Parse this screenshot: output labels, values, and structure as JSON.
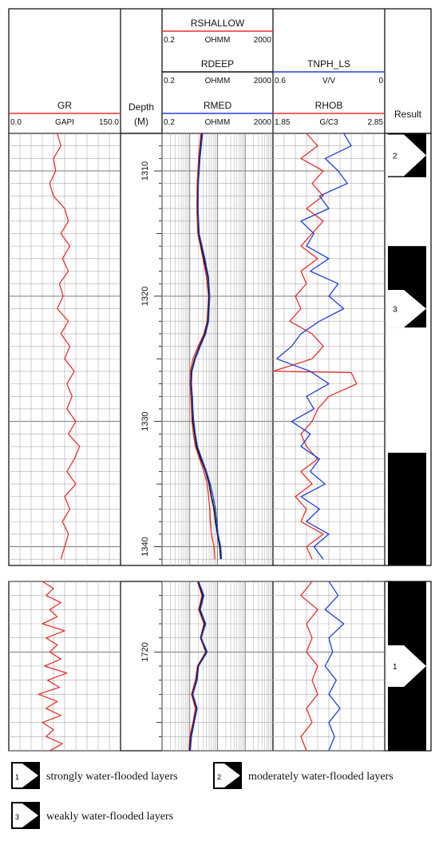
{
  "chart_data": {
    "type": "line",
    "tracks": {
      "gr": {
        "header": [
          {
            "name": "GR",
            "unit": "GAPI",
            "min": "0.0",
            "max": "150.0",
            "color": "#e8302c"
          }
        ]
      },
      "depth": {
        "label": "Depth",
        "unit": "(M)"
      },
      "resistivity": {
        "scale": "log",
        "header": [
          {
            "name": "RSHALLOW",
            "unit": "OHMM",
            "min": "0.2",
            "max": "2000",
            "color": "#e8302c"
          },
          {
            "name": "RDEEP",
            "unit": "OHMM",
            "min": "0.2",
            "max": "2000",
            "color": "#111111"
          },
          {
            "name": "RMED",
            "unit": "OHMM",
            "min": "0.2",
            "max": "2000",
            "color": "#1f3fd8"
          }
        ]
      },
      "porosity": {
        "header": [
          {
            "name": "TNPH_LS",
            "unit": "V/V",
            "min": "0.6",
            "max": "0",
            "color": "#1f3fd8"
          },
          {
            "name": "RHOB",
            "unit": "G/C3",
            "min": "1.85",
            "max": "2.85",
            "color": "#e8302c"
          }
        ]
      },
      "result": {
        "label": "Result"
      }
    },
    "upper_section": {
      "depth_range": [
        1307,
        1341.5
      ],
      "depth_ticks": [
        "1310",
        "1320",
        "1330",
        "1340"
      ],
      "gr": [
        [
          1307,
          65
        ],
        [
          1308,
          70
        ],
        [
          1309,
          60
        ],
        [
          1310,
          63
        ],
        [
          1311,
          55
        ],
        [
          1312,
          60
        ],
        [
          1313,
          75
        ],
        [
          1314,
          80
        ],
        [
          1315,
          70
        ],
        [
          1316,
          82
        ],
        [
          1317,
          72
        ],
        [
          1318,
          80
        ],
        [
          1319,
          68
        ],
        [
          1320,
          73
        ],
        [
          1321,
          65
        ],
        [
          1322,
          80
        ],
        [
          1323,
          70
        ],
        [
          1324,
          82
        ],
        [
          1325,
          75
        ],
        [
          1326,
          88
        ],
        [
          1327,
          78
        ],
        [
          1328,
          85
        ],
        [
          1329,
          78
        ],
        [
          1330,
          90
        ],
        [
          1331,
          80
        ],
        [
          1332,
          95
        ],
        [
          1333,
          88
        ],
        [
          1334,
          78
        ],
        [
          1335,
          90
        ],
        [
          1336,
          75
        ],
        [
          1337,
          82
        ],
        [
          1338,
          72
        ],
        [
          1339,
          80
        ],
        [
          1340,
          75
        ],
        [
          1341,
          70
        ]
      ],
      "rdeep": [
        [
          1307,
          5.5
        ],
        [
          1309,
          4.5
        ],
        [
          1311,
          4.0
        ],
        [
          1313,
          3.9
        ],
        [
          1315,
          4.2
        ],
        [
          1317,
          6.5
        ],
        [
          1318.5,
          9.0
        ],
        [
          1320,
          10.0
        ],
        [
          1322,
          9.0
        ],
        [
          1323,
          7.0
        ],
        [
          1324,
          4.5
        ],
        [
          1325,
          3.0
        ],
        [
          1326,
          2.3
        ],
        [
          1327,
          2.2
        ],
        [
          1328,
          2.4
        ],
        [
          1329,
          2.5
        ],
        [
          1330,
          2.6
        ],
        [
          1331,
          3.0
        ],
        [
          1332,
          3.5
        ],
        [
          1333,
          5.0
        ],
        [
          1334,
          7.5
        ],
        [
          1335,
          10.0
        ],
        [
          1336,
          12.0
        ],
        [
          1337,
          15.0
        ],
        [
          1338,
          17.0
        ],
        [
          1339,
          20.0
        ],
        [
          1340,
          24.0
        ],
        [
          1341,
          26.0
        ]
      ],
      "rmed": [
        [
          1307,
          5.8
        ],
        [
          1309,
          4.7
        ],
        [
          1311,
          4.1
        ],
        [
          1313,
          4.0
        ],
        [
          1315,
          4.4
        ],
        [
          1317,
          7.0
        ],
        [
          1318.5,
          9.5
        ],
        [
          1320,
          10.5
        ],
        [
          1322,
          9.5
        ],
        [
          1323,
          7.5
        ],
        [
          1324,
          4.8
        ],
        [
          1325,
          3.2
        ],
        [
          1326,
          2.4
        ],
        [
          1327,
          2.3
        ],
        [
          1328,
          2.5
        ],
        [
          1329,
          2.6
        ],
        [
          1330,
          2.8
        ],
        [
          1331,
          3.2
        ],
        [
          1332,
          3.8
        ],
        [
          1333,
          5.5
        ],
        [
          1334,
          8.0
        ],
        [
          1335,
          11.0
        ],
        [
          1336,
          14.0
        ],
        [
          1337,
          17.0
        ],
        [
          1338,
          19.0
        ],
        [
          1339,
          21.0
        ],
        [
          1340,
          26.0
        ],
        [
          1341,
          28.0
        ]
      ],
      "rshallow": [
        [
          1307,
          5.0
        ],
        [
          1309,
          4.2
        ],
        [
          1311,
          3.7
        ],
        [
          1313,
          3.6
        ],
        [
          1315,
          3.9
        ],
        [
          1317,
          6.0
        ],
        [
          1318.5,
          8.0
        ],
        [
          1320,
          9.5
        ],
        [
          1322,
          8.5
        ],
        [
          1323,
          6.5
        ],
        [
          1324,
          4.0
        ],
        [
          1325,
          2.6
        ],
        [
          1326,
          2.1
        ],
        [
          1327,
          2.0
        ],
        [
          1328,
          2.2
        ],
        [
          1329,
          2.3
        ],
        [
          1330,
          2.4
        ],
        [
          1331,
          2.7
        ],
        [
          1332,
          3.2
        ],
        [
          1333,
          4.5
        ],
        [
          1334,
          6.5
        ],
        [
          1335,
          8.5
        ],
        [
          1336,
          9.5
        ],
        [
          1337,
          10.5
        ],
        [
          1338,
          11.0
        ],
        [
          1339,
          12.0
        ],
        [
          1340,
          15.0
        ],
        [
          1341,
          16.0
        ]
      ],
      "rhob": [
        [
          1307,
          2.15
        ],
        [
          1308,
          2.25
        ],
        [
          1309,
          2.1
        ],
        [
          1310,
          2.3
        ],
        [
          1311,
          2.2
        ],
        [
          1312,
          2.3
        ],
        [
          1313,
          2.15
        ],
        [
          1314,
          2.3
        ],
        [
          1315,
          2.2
        ],
        [
          1316,
          2.1
        ],
        [
          1317,
          2.25
        ],
        [
          1318,
          2.1
        ],
        [
          1319,
          2.15
        ],
        [
          1320,
          2.05
        ],
        [
          1321,
          2.1
        ],
        [
          1322,
          2.0
        ],
        [
          1323,
          2.2
        ],
        [
          1324,
          2.3
        ],
        [
          1325,
          2.2
        ],
        [
          1326,
          1.85
        ],
        [
          1326.1,
          2.55
        ],
        [
          1327,
          2.6
        ],
        [
          1328,
          2.35
        ],
        [
          1329,
          2.25
        ],
        [
          1330,
          2.2
        ],
        [
          1331,
          2.1
        ],
        [
          1332,
          2.15
        ],
        [
          1333,
          2.25
        ],
        [
          1334,
          2.1
        ],
        [
          1335,
          2.2
        ],
        [
          1336,
          2.05
        ],
        [
          1337,
          2.15
        ],
        [
          1338,
          2.1
        ],
        [
          1339,
          2.3
        ],
        [
          1340,
          2.15
        ],
        [
          1341,
          2.2
        ]
      ],
      "tnph": [
        [
          1307,
          0.22
        ],
        [
          1308,
          0.18
        ],
        [
          1309,
          0.32
        ],
        [
          1310,
          0.25
        ],
        [
          1311,
          0.2
        ],
        [
          1312,
          0.35
        ],
        [
          1313,
          0.3
        ],
        [
          1314,
          0.45
        ],
        [
          1315,
          0.38
        ],
        [
          1316,
          0.42
        ],
        [
          1317,
          0.3
        ],
        [
          1318,
          0.4
        ],
        [
          1319,
          0.25
        ],
        [
          1320,
          0.3
        ],
        [
          1321,
          0.22
        ],
        [
          1322,
          0.35
        ],
        [
          1323,
          0.45
        ],
        [
          1324,
          0.5
        ],
        [
          1325,
          0.58
        ],
        [
          1326,
          0.4
        ],
        [
          1327,
          0.3
        ],
        [
          1328,
          0.42
        ],
        [
          1329,
          0.38
        ],
        [
          1330,
          0.5
        ],
        [
          1331,
          0.4
        ],
        [
          1332,
          0.45
        ],
        [
          1333,
          0.35
        ],
        [
          1334,
          0.4
        ],
        [
          1335,
          0.32
        ],
        [
          1336,
          0.45
        ],
        [
          1337,
          0.35
        ],
        [
          1338,
          0.42
        ],
        [
          1339,
          0.3
        ],
        [
          1340,
          0.38
        ],
        [
          1341,
          0.33
        ]
      ],
      "result_layers": [
        {
          "label": "2",
          "type": "moderately",
          "top": 1307,
          "bottom": 1310.5
        },
        {
          "label": "",
          "type": "weakly",
          "top": 1316,
          "bottom": 1319.5
        },
        {
          "label": "3",
          "type": "weakly",
          "top": 1319.5,
          "bottom": 1322.5
        },
        {
          "label": "",
          "type": "weakly",
          "top": 1332.5,
          "bottom": 1341.5
        }
      ]
    },
    "lower_section": {
      "depth_range": [
        1715,
        1727
      ],
      "depth_ticks": [
        "1720"
      ],
      "gr": [
        [
          1715,
          45
        ],
        [
          1715.5,
          60
        ],
        [
          1716,
          50
        ],
        [
          1716.5,
          70
        ],
        [
          1717,
          55
        ],
        [
          1717.5,
          65
        ],
        [
          1718,
          45
        ],
        [
          1718.5,
          75
        ],
        [
          1719,
          50
        ],
        [
          1719.5,
          65
        ],
        [
          1720,
          55
        ],
        [
          1720.5,
          70
        ],
        [
          1721,
          48
        ],
        [
          1721.5,
          78
        ],
        [
          1722,
          52
        ],
        [
          1722.5,
          68
        ],
        [
          1723,
          40
        ],
        [
          1723.5,
          65
        ],
        [
          1724,
          50
        ],
        [
          1724.5,
          70
        ],
        [
          1725,
          45
        ],
        [
          1725.5,
          60
        ],
        [
          1726,
          50
        ],
        [
          1726.5,
          72
        ],
        [
          1727,
          55
        ]
      ],
      "rdeep": [
        [
          1715,
          4.0
        ],
        [
          1716,
          6.0
        ],
        [
          1717,
          4.5
        ],
        [
          1718,
          7.0
        ],
        [
          1719,
          5.0
        ],
        [
          1720,
          8.0
        ],
        [
          1721,
          4.0
        ],
        [
          1722,
          3.5
        ],
        [
          1723,
          2.5
        ],
        [
          1724,
          3.5
        ],
        [
          1725,
          2.8
        ],
        [
          1726,
          2.2
        ],
        [
          1727,
          2.0
        ]
      ],
      "rmed": [
        [
          1715,
          4.2
        ],
        [
          1716,
          6.5
        ],
        [
          1717,
          4.8
        ],
        [
          1718,
          7.5
        ],
        [
          1719,
          5.2
        ],
        [
          1720,
          8.5
        ],
        [
          1721,
          4.2
        ],
        [
          1722,
          3.7
        ],
        [
          1723,
          2.6
        ],
        [
          1724,
          3.7
        ],
        [
          1725,
          2.9
        ],
        [
          1726,
          2.3
        ],
        [
          1727,
          2.1
        ]
      ],
      "rshallow": [
        [
          1715,
          3.8
        ],
        [
          1716,
          5.5
        ],
        [
          1717,
          4.2
        ],
        [
          1718,
          6.5
        ],
        [
          1719,
          4.8
        ],
        [
          1720,
          7.5
        ],
        [
          1721,
          3.8
        ],
        [
          1722,
          3.2
        ],
        [
          1723,
          2.3
        ],
        [
          1724,
          3.2
        ],
        [
          1725,
          2.6
        ],
        [
          1726,
          2.0
        ],
        [
          1727,
          1.9
        ]
      ],
      "rhob": [
        [
          1715,
          2.2
        ],
        [
          1716,
          2.1
        ],
        [
          1717,
          2.25
        ],
        [
          1718,
          2.15
        ],
        [
          1719,
          2.2
        ],
        [
          1720,
          2.15
        ],
        [
          1721,
          2.25
        ],
        [
          1722,
          2.2
        ],
        [
          1723,
          2.25
        ],
        [
          1724,
          2.15
        ],
        [
          1725,
          2.2
        ],
        [
          1726,
          2.1
        ],
        [
          1727,
          2.15
        ]
      ],
      "tnph": [
        [
          1715,
          0.3
        ],
        [
          1716,
          0.25
        ],
        [
          1717,
          0.32
        ],
        [
          1718,
          0.22
        ],
        [
          1719,
          0.3
        ],
        [
          1720,
          0.28
        ],
        [
          1721,
          0.32
        ],
        [
          1722,
          0.26
        ],
        [
          1723,
          0.3
        ],
        [
          1724,
          0.24
        ],
        [
          1725,
          0.3
        ],
        [
          1726,
          0.27
        ],
        [
          1727,
          0.3
        ]
      ],
      "result_layers": [
        {
          "label": "1",
          "type": "strongly",
          "top": 1715,
          "bottom": 1727
        }
      ]
    },
    "legend": [
      {
        "num": "1",
        "text": "strongly water-flooded layers"
      },
      {
        "num": "2",
        "text": "moderately water-flooded layers"
      },
      {
        "num": "3",
        "text": "weakly water-flooded layers"
      }
    ]
  }
}
